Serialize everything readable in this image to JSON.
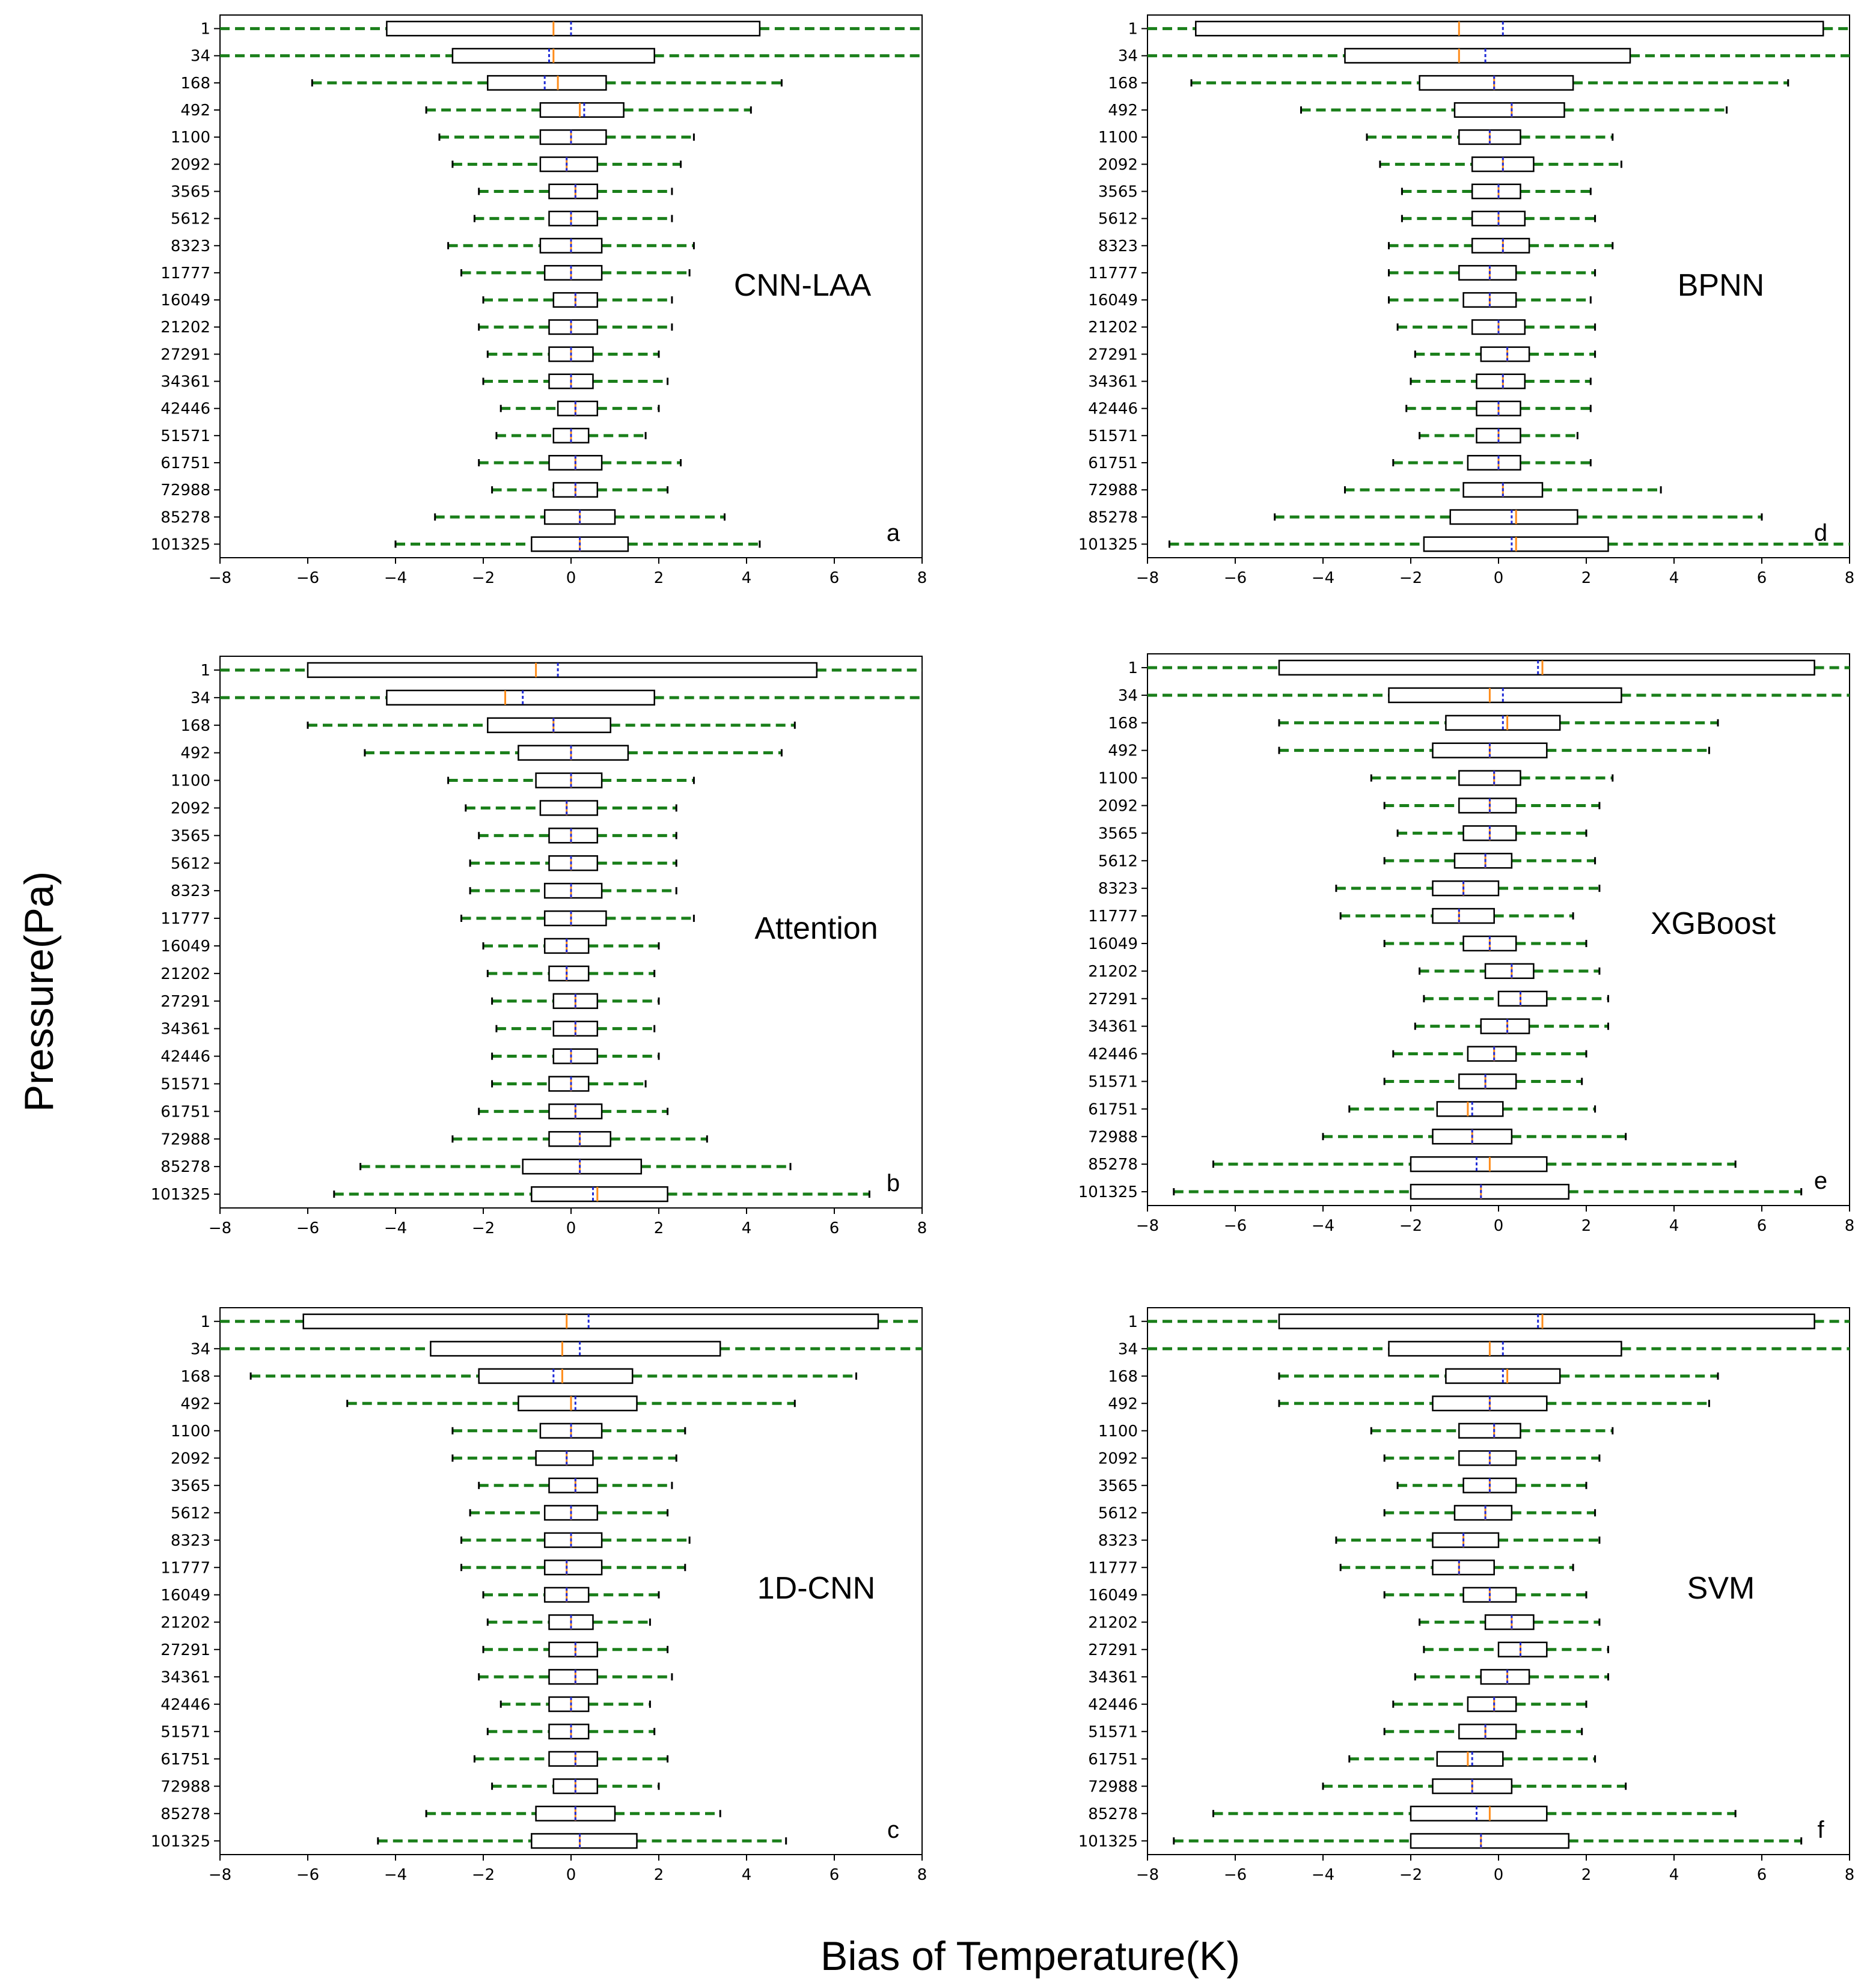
{
  "figure": {
    "xlabel": "Bias of Temperature(K)",
    "ylabel": "Pressure(Pa)"
  },
  "colors": {
    "whisker": "#1a7f1a",
    "median": "#ff8c1a",
    "mean": "#1f2bd6",
    "box": "#000000"
  },
  "chart_data": [
    {
      "type": "boxplot-horizontal",
      "title": "CNN-LAA",
      "letter": "a",
      "xlim": [
        -8,
        8
      ],
      "xticks": [
        "−8",
        "−6",
        "−4",
        "−2",
        "0",
        "2",
        "4",
        "6",
        "8"
      ],
      "categories": [
        "1",
        "34",
        "168",
        "492",
        "1100",
        "2092",
        "3565",
        "5612",
        "8323",
        "11777",
        "16049",
        "21202",
        "27291",
        "34361",
        "42446",
        "51571",
        "61751",
        "72988",
        "85278",
        "101325"
      ],
      "whisker_low": [
        -8.0,
        -8.0,
        -5.9,
        -3.3,
        -3.0,
        -2.7,
        -2.1,
        -2.2,
        -2.8,
        -2.5,
        -2.0,
        -2.1,
        -1.9,
        -2.0,
        -1.6,
        -1.7,
        -2.1,
        -1.8,
        -3.1,
        -4.0
      ],
      "q1": [
        -4.2,
        -2.7,
        -1.9,
        -0.7,
        -0.7,
        -0.7,
        -0.5,
        -0.5,
        -0.7,
        -0.6,
        -0.4,
        -0.5,
        -0.5,
        -0.5,
        -0.3,
        -0.4,
        -0.5,
        -0.4,
        -0.6,
        -0.9
      ],
      "median": [
        -0.4,
        -0.4,
        -0.3,
        0.2,
        0.0,
        -0.1,
        0.1,
        0.0,
        0.0,
        0.0,
        0.1,
        0.0,
        0.0,
        0.0,
        0.1,
        0.0,
        0.1,
        0.1,
        0.2,
        0.2
      ],
      "mean": [
        0.0,
        -0.5,
        -0.6,
        0.3,
        0.0,
        -0.1,
        0.1,
        0.0,
        0.0,
        0.0,
        0.1,
        0.0,
        0.0,
        0.0,
        0.1,
        0.0,
        0.1,
        0.1,
        0.2,
        0.2
      ],
      "q3": [
        4.3,
        1.9,
        0.8,
        1.2,
        0.8,
        0.6,
        0.6,
        0.6,
        0.7,
        0.7,
        0.6,
        0.6,
        0.5,
        0.5,
        0.6,
        0.4,
        0.7,
        0.6,
        1.0,
        1.3
      ],
      "whisker_high": [
        8.0,
        8.0,
        4.8,
        4.1,
        2.8,
        2.5,
        2.3,
        2.3,
        2.8,
        2.7,
        2.3,
        2.3,
        2.0,
        2.2,
        2.0,
        1.7,
        2.5,
        2.2,
        3.5,
        4.3
      ]
    },
    {
      "type": "boxplot-horizontal",
      "title": "BPNN",
      "letter": "d",
      "xlim": [
        -8,
        8
      ],
      "xticks": [
        "−8",
        "−6",
        "−4",
        "−2",
        "0",
        "2",
        "4",
        "6",
        "8"
      ],
      "categories": [
        "1",
        "34",
        "168",
        "492",
        "1100",
        "2092",
        "3565",
        "5612",
        "8323",
        "11777",
        "16049",
        "21202",
        "27291",
        "34361",
        "42446",
        "51571",
        "61751",
        "72988",
        "85278",
        "101325"
      ],
      "whisker_low": [
        -8.0,
        -8.0,
        -7.0,
        -4.5,
        -3.0,
        -2.7,
        -2.2,
        -2.2,
        -2.5,
        -2.5,
        -2.5,
        -2.3,
        -1.9,
        -2.0,
        -2.1,
        -1.8,
        -2.4,
        -3.5,
        -5.1,
        -7.5
      ],
      "q1": [
        -6.9,
        -3.5,
        -1.8,
        -1.0,
        -0.9,
        -0.6,
        -0.6,
        -0.6,
        -0.6,
        -0.9,
        -0.8,
        -0.6,
        -0.4,
        -0.5,
        -0.5,
        -0.5,
        -0.7,
        -0.8,
        -1.1,
        -1.7
      ],
      "median": [
        -0.9,
        -0.9,
        -0.1,
        0.3,
        -0.2,
        0.1,
        0.0,
        0.0,
        0.1,
        -0.2,
        -0.2,
        0.0,
        0.2,
        0.1,
        0.0,
        0.0,
        0.0,
        0.1,
        0.4,
        0.4
      ],
      "mean": [
        0.1,
        -0.3,
        -0.1,
        0.3,
        -0.2,
        0.1,
        0.0,
        0.0,
        0.1,
        -0.2,
        -0.2,
        0.0,
        0.2,
        0.1,
        0.0,
        0.0,
        0.0,
        0.1,
        0.3,
        0.3
      ],
      "q3": [
        7.4,
        3.0,
        1.7,
        1.5,
        0.5,
        0.8,
        0.5,
        0.6,
        0.7,
        0.4,
        0.4,
        0.6,
        0.7,
        0.6,
        0.5,
        0.5,
        0.5,
        1.0,
        1.8,
        2.5
      ],
      "whisker_high": [
        8.0,
        8.0,
        6.6,
        5.2,
        2.6,
        2.8,
        2.1,
        2.2,
        2.6,
        2.2,
        2.1,
        2.2,
        2.2,
        2.1,
        2.1,
        1.8,
        2.1,
        3.7,
        6.0,
        8.0
      ]
    },
    {
      "type": "boxplot-horizontal",
      "title": "Attention",
      "letter": "b",
      "xlim": [
        -8,
        8
      ],
      "xticks": [
        "−8",
        "−6",
        "−4",
        "−2",
        "0",
        "2",
        "4",
        "6",
        "8"
      ],
      "categories": [
        "1",
        "34",
        "168",
        "492",
        "1100",
        "2092",
        "3565",
        "5612",
        "8323",
        "11777",
        "16049",
        "21202",
        "27291",
        "34361",
        "42446",
        "51571",
        "61751",
        "72988",
        "85278",
        "101325"
      ],
      "whisker_low": [
        -8.0,
        -8.0,
        -6.0,
        -4.7,
        -2.8,
        -2.4,
        -2.1,
        -2.3,
        -2.3,
        -2.5,
        -2.0,
        -1.9,
        -1.8,
        -1.7,
        -1.8,
        -1.8,
        -2.1,
        -2.7,
        -4.8,
        -5.4
      ],
      "q1": [
        -6.0,
        -4.2,
        -1.9,
        -1.2,
        -0.8,
        -0.7,
        -0.5,
        -0.5,
        -0.6,
        -0.6,
        -0.6,
        -0.5,
        -0.4,
        -0.4,
        -0.4,
        -0.5,
        -0.5,
        -0.5,
        -1.1,
        -0.9
      ],
      "median": [
        -0.8,
        -1.5,
        -0.4,
        0.0,
        0.0,
        -0.1,
        0.0,
        0.0,
        0.0,
        0.0,
        -0.1,
        -0.1,
        0.1,
        0.1,
        0.0,
        0.0,
        0.1,
        0.2,
        0.2,
        0.6
      ],
      "mean": [
        -0.3,
        -1.1,
        -0.4,
        0.0,
        0.0,
        -0.1,
        0.0,
        0.0,
        0.0,
        0.0,
        -0.1,
        -0.1,
        0.1,
        0.1,
        0.0,
        0.0,
        0.1,
        0.2,
        0.2,
        0.5
      ],
      "q3": [
        5.6,
        1.9,
        0.9,
        1.3,
        0.7,
        0.6,
        0.6,
        0.6,
        0.7,
        0.8,
        0.4,
        0.4,
        0.6,
        0.6,
        0.6,
        0.4,
        0.7,
        0.9,
        1.6,
        2.2
      ],
      "whisker_high": [
        8.0,
        8.0,
        5.1,
        4.8,
        2.8,
        2.4,
        2.4,
        2.4,
        2.4,
        2.8,
        2.0,
        1.9,
        2.0,
        1.9,
        2.0,
        1.7,
        2.2,
        3.1,
        5.0,
        6.8
      ]
    },
    {
      "type": "boxplot-horizontal",
      "title": "XGBoost",
      "letter": "e",
      "xlim": [
        -8,
        8
      ],
      "xticks": [
        "−8",
        "−6",
        "−4",
        "−2",
        "0",
        "2",
        "4",
        "6",
        "8"
      ],
      "categories": [
        "1",
        "34",
        "168",
        "492",
        "1100",
        "2092",
        "3565",
        "5612",
        "8323",
        "11777",
        "16049",
        "21202",
        "27291",
        "34361",
        "42446",
        "51571",
        "61751",
        "72988",
        "85278",
        "101325"
      ],
      "whisker_low": [
        -8.0,
        -8.0,
        -5.0,
        -5.0,
        -2.9,
        -2.6,
        -2.3,
        -2.6,
        -3.7,
        -3.6,
        -2.6,
        -1.8,
        -1.7,
        -1.9,
        -2.4,
        -2.6,
        -3.4,
        -4.0,
        -6.5,
        -7.4
      ],
      "q1": [
        -5.0,
        -2.5,
        -1.2,
        -1.5,
        -0.9,
        -0.9,
        -0.8,
        -1.0,
        -1.5,
        -1.5,
        -0.8,
        -0.3,
        0.0,
        -0.4,
        -0.7,
        -0.9,
        -1.4,
        -1.5,
        -2.0,
        -2.0
      ],
      "median": [
        1.0,
        -0.2,
        0.2,
        -0.2,
        -0.1,
        -0.2,
        -0.2,
        -0.3,
        -0.8,
        -0.9,
        -0.2,
        0.3,
        0.5,
        0.2,
        -0.1,
        -0.3,
        -0.7,
        -0.6,
        -0.2,
        -0.4
      ],
      "mean": [
        0.9,
        0.1,
        0.1,
        -0.2,
        -0.1,
        -0.2,
        -0.2,
        -0.3,
        -0.8,
        -0.9,
        -0.2,
        0.3,
        0.5,
        0.2,
        -0.1,
        -0.3,
        -0.6,
        -0.6,
        -0.5,
        -0.4
      ],
      "q3": [
        7.2,
        2.8,
        1.4,
        1.1,
        0.5,
        0.4,
        0.4,
        0.3,
        0.0,
        -0.1,
        0.4,
        0.8,
        1.1,
        0.7,
        0.4,
        0.4,
        0.1,
        0.3,
        1.1,
        1.6
      ],
      "whisker_high": [
        8.0,
        8.0,
        5.0,
        4.8,
        2.6,
        2.3,
        2.0,
        2.2,
        2.3,
        1.7,
        2.0,
        2.3,
        2.5,
        2.5,
        2.0,
        1.9,
        2.2,
        2.9,
        5.4,
        6.9
      ]
    },
    {
      "type": "boxplot-horizontal",
      "title": "1D-CNN",
      "letter": "c",
      "xlim": [
        -8,
        8
      ],
      "xticks": [
        "−8",
        "−6",
        "−4",
        "−2",
        "0",
        "2",
        "4",
        "6",
        "8"
      ],
      "categories": [
        "1",
        "34",
        "168",
        "492",
        "1100",
        "2092",
        "3565",
        "5612",
        "8323",
        "11777",
        "16049",
        "21202",
        "27291",
        "34361",
        "42446",
        "51571",
        "61751",
        "72988",
        "85278",
        "101325"
      ],
      "whisker_low": [
        -8.0,
        -8.0,
        -7.3,
        -5.1,
        -2.7,
        -2.7,
        -2.1,
        -2.3,
        -2.5,
        -2.5,
        -2.0,
        -1.9,
        -2.0,
        -2.1,
        -1.6,
        -1.9,
        -2.2,
        -1.8,
        -3.3,
        -4.4
      ],
      "q1": [
        -6.1,
        -3.2,
        -2.1,
        -1.2,
        -0.7,
        -0.8,
        -0.5,
        -0.6,
        -0.6,
        -0.6,
        -0.6,
        -0.5,
        -0.5,
        -0.5,
        -0.5,
        -0.5,
        -0.5,
        -0.4,
        -0.8,
        -0.9
      ],
      "median": [
        -0.1,
        -0.2,
        -0.2,
        0.0,
        0.0,
        -0.1,
        0.1,
        0.0,
        0.0,
        -0.1,
        -0.1,
        0.0,
        0.1,
        0.1,
        0.0,
        0.0,
        0.1,
        0.1,
        0.1,
        0.2
      ],
      "mean": [
        0.4,
        0.2,
        -0.4,
        0.1,
        0.0,
        -0.1,
        0.1,
        0.0,
        0.0,
        -0.1,
        -0.1,
        0.0,
        0.1,
        0.1,
        0.0,
        0.0,
        0.1,
        0.1,
        0.1,
        0.2
      ],
      "q3": [
        7.0,
        3.4,
        1.4,
        1.5,
        0.7,
        0.5,
        0.6,
        0.6,
        0.7,
        0.7,
        0.4,
        0.5,
        0.6,
        0.6,
        0.4,
        0.4,
        0.6,
        0.6,
        1.0,
        1.5
      ],
      "whisker_high": [
        8.0,
        8.0,
        6.5,
        5.1,
        2.6,
        2.4,
        2.3,
        2.2,
        2.7,
        2.6,
        2.0,
        1.8,
        2.2,
        2.3,
        1.8,
        1.9,
        2.2,
        2.0,
        3.4,
        4.9
      ]
    },
    {
      "type": "boxplot-horizontal",
      "title": "SVM",
      "letter": "f",
      "xlim": [
        -8,
        8
      ],
      "xticks": [
        "−8",
        "−6",
        "−4",
        "−2",
        "0",
        "2",
        "4",
        "6",
        "8"
      ],
      "categories": [
        "1",
        "34",
        "168",
        "492",
        "1100",
        "2092",
        "3565",
        "5612",
        "8323",
        "11777",
        "16049",
        "21202",
        "27291",
        "34361",
        "42446",
        "51571",
        "61751",
        "72988",
        "85278",
        "101325"
      ],
      "whisker_low": [
        -8.0,
        -8.0,
        -5.0,
        -5.0,
        -2.9,
        -2.6,
        -2.3,
        -2.6,
        -3.7,
        -3.6,
        -2.6,
        -1.8,
        -1.7,
        -1.9,
        -2.4,
        -2.6,
        -3.4,
        -4.0,
        -6.5,
        -7.4
      ],
      "q1": [
        -5.0,
        -2.5,
        -1.2,
        -1.5,
        -0.9,
        -0.9,
        -0.8,
        -1.0,
        -1.5,
        -1.5,
        -0.8,
        -0.3,
        0.0,
        -0.4,
        -0.7,
        -0.9,
        -1.4,
        -1.5,
        -2.0,
        -2.0
      ],
      "median": [
        1.0,
        -0.2,
        0.2,
        -0.2,
        -0.1,
        -0.2,
        -0.2,
        -0.3,
        -0.8,
        -0.9,
        -0.2,
        0.3,
        0.5,
        0.2,
        -0.1,
        -0.3,
        -0.7,
        -0.6,
        -0.2,
        -0.4
      ],
      "mean": [
        0.9,
        0.1,
        0.1,
        -0.2,
        -0.1,
        -0.2,
        -0.2,
        -0.3,
        -0.8,
        -0.9,
        -0.2,
        0.3,
        0.5,
        0.2,
        -0.1,
        -0.3,
        -0.6,
        -0.6,
        -0.5,
        -0.4
      ],
      "q3": [
        7.2,
        2.8,
        1.4,
        1.1,
        0.5,
        0.4,
        0.4,
        0.3,
        0.0,
        -0.1,
        0.4,
        0.8,
        1.1,
        0.7,
        0.4,
        0.4,
        0.1,
        0.3,
        1.1,
        1.6
      ],
      "whisker_high": [
        8.0,
        8.0,
        5.0,
        4.8,
        2.6,
        2.3,
        2.0,
        2.2,
        2.3,
        1.7,
        2.0,
        2.3,
        2.5,
        2.5,
        2.0,
        1.9,
        2.2,
        2.9,
        5.4,
        6.9
      ]
    }
  ]
}
